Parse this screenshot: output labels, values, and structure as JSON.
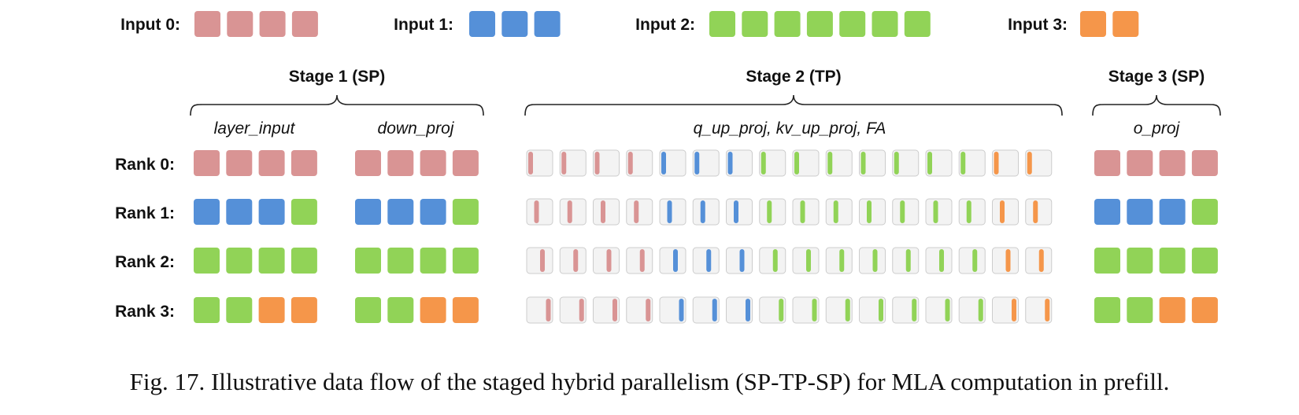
{
  "colors": {
    "input_0": "#d99494",
    "input_1": "#5590d8",
    "input_2": "#91d357",
    "input_3": "#f5964a",
    "slot_fill": "#f3f3f3",
    "slot_border": "#cccccc"
  },
  "inputs": [
    {
      "label": "Input 0:",
      "color_key": "input_0",
      "blocks": 4
    },
    {
      "label": "Input 1:",
      "color_key": "input_1",
      "blocks": 3
    },
    {
      "label": "Input 2:",
      "color_key": "input_2",
      "blocks": 7
    },
    {
      "label": "Input 3:",
      "color_key": "input_3",
      "blocks": 2
    }
  ],
  "stages": [
    {
      "title": "Stage 1 (SP)",
      "ops": [
        "layer_input",
        "down_proj"
      ]
    },
    {
      "title": "Stage 2 (TP)",
      "ops": [
        "q_up_proj,  kv_up_proj,  FA"
      ]
    },
    {
      "title": "Stage 3 (SP)",
      "ops": [
        "o_proj"
      ]
    }
  ],
  "ranks": [
    {
      "label": "Rank 0:",
      "sp_blocks": [
        "input_0",
        "input_0",
        "input_0",
        "input_0"
      ]
    },
    {
      "label": "Rank 1:",
      "sp_blocks": [
        "input_1",
        "input_1",
        "input_1",
        "input_2"
      ]
    },
    {
      "label": "Rank 2:",
      "sp_blocks": [
        "input_2",
        "input_2",
        "input_2",
        "input_2"
      ]
    },
    {
      "label": "Rank 3:",
      "sp_blocks": [
        "input_2",
        "input_2",
        "input_3",
        "input_3"
      ]
    }
  ],
  "tp_tokens": [
    "input_0",
    "input_0",
    "input_0",
    "input_0",
    "input_1",
    "input_1",
    "input_1",
    "input_2",
    "input_2",
    "input_2",
    "input_2",
    "input_2",
    "input_2",
    "input_2",
    "input_3",
    "input_3"
  ],
  "caption": "Fig. 17.  Illustrative data flow of the staged hybrid parallelism (SP-TP-SP) for MLA computation in prefill."
}
